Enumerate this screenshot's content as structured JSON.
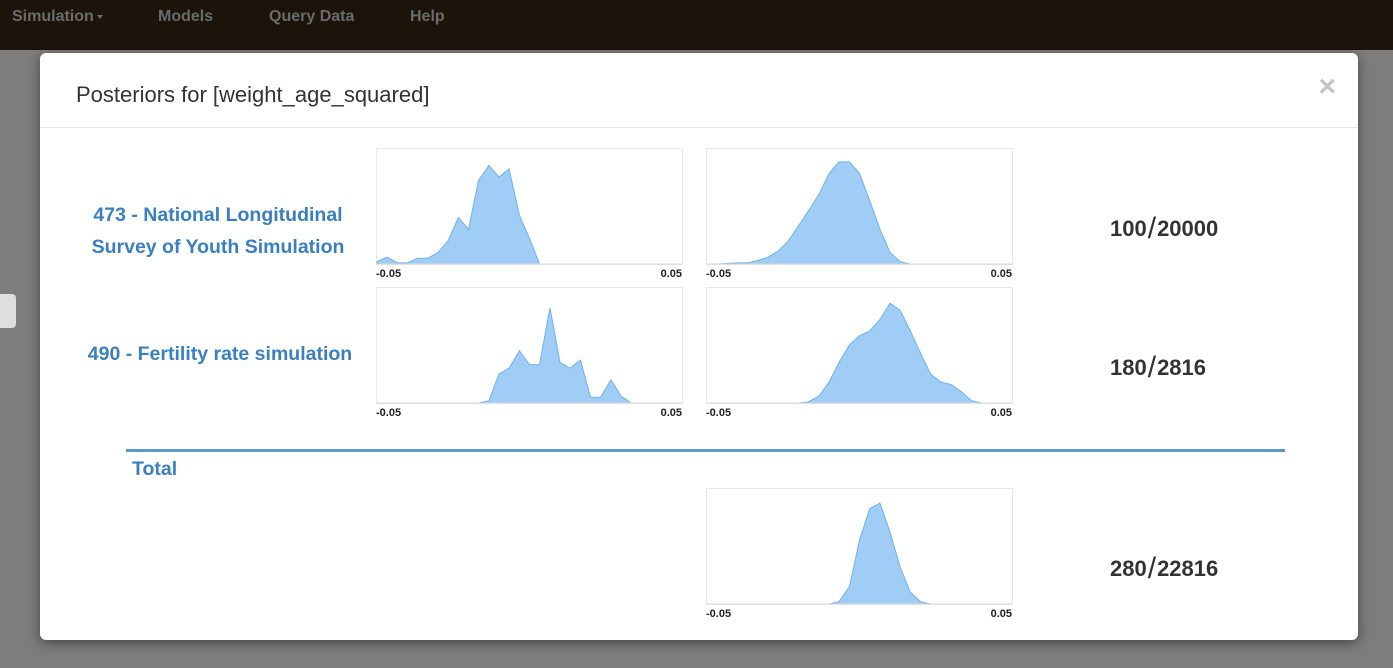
{
  "navbar": {
    "items": [
      {
        "label": "Simulation",
        "has_caret": true
      },
      {
        "label": "Models"
      },
      {
        "label": "Query Data"
      },
      {
        "label": "Help"
      }
    ]
  },
  "modal": {
    "title": "Posteriors for [weight_age_squared]",
    "close_label": "×",
    "rows": [
      {
        "model_lines": [
          "473 - National Longitudinal",
          "Survey of Youth Simulation"
        ],
        "accepted": "100",
        "total": "20000"
      },
      {
        "model_lines": [
          "490 - Fertility rate simulation"
        ],
        "accepted": "180",
        "total": "2816"
      }
    ],
    "total_section": {
      "label": "Total",
      "accepted": "280",
      "total": "22816"
    }
  },
  "chart_data": [
    {
      "type": "area",
      "xlim": [
        -0.05,
        0.05
      ],
      "tick_labels": [
        "-0.05",
        "0.05"
      ],
      "color": "#9fcdf5",
      "x": [
        -0.05,
        -0.0467,
        -0.0433,
        -0.04,
        -0.0367,
        -0.0333,
        -0.03,
        -0.0267,
        -0.0233,
        -0.02,
        -0.0167,
        -0.0133,
        -0.01,
        -0.0067,
        -0.0033,
        0,
        0.0033,
        0.0067,
        0.01,
        0.0133,
        0.0167,
        0.02,
        0.0233,
        0.0267,
        0.03,
        0.0333,
        0.0367,
        0.04,
        0.0433,
        0.0467,
        0.05
      ],
      "y": [
        0.02,
        0.06,
        0.01,
        0.01,
        0.05,
        0.05,
        0.1,
        0.2,
        0.4,
        0.3,
        0.72,
        0.85,
        0.75,
        0.82,
        0.42,
        0.22,
        0,
        0,
        0,
        0,
        0,
        0,
        0,
        0,
        0,
        0,
        0,
        0,
        0,
        0,
        0
      ]
    },
    {
      "type": "area",
      "xlim": [
        -0.05,
        0.05
      ],
      "tick_labels": [
        "-0.05",
        "0.05"
      ],
      "color": "#9fcdf5",
      "x": [
        -0.05,
        -0.0467,
        -0.0433,
        -0.04,
        -0.0367,
        -0.0333,
        -0.03,
        -0.0267,
        -0.0233,
        -0.02,
        -0.0167,
        -0.0133,
        -0.01,
        -0.0067,
        -0.0033,
        0,
        0.0033,
        0.0067,
        0.01,
        0.0133,
        0.0167,
        0.02,
        0.0233,
        0.0267,
        0.03,
        0.0333,
        0.0367,
        0.04,
        0.0433,
        0.0467,
        0.05
      ],
      "y": [
        0,
        0,
        0.005,
        0.01,
        0.01,
        0.03,
        0.06,
        0.11,
        0.2,
        0.33,
        0.46,
        0.6,
        0.78,
        0.88,
        0.88,
        0.78,
        0.55,
        0.3,
        0.1,
        0.02,
        0,
        0,
        0,
        0,
        0,
        0,
        0,
        0,
        0,
        0,
        0
      ]
    },
    {
      "type": "area",
      "xlim": [
        -0.05,
        0.05
      ],
      "tick_labels": [
        "-0.05",
        "0.05"
      ],
      "color": "#9fcdf5",
      "x": [
        -0.05,
        -0.0467,
        -0.0433,
        -0.04,
        -0.0367,
        -0.0333,
        -0.03,
        -0.0267,
        -0.0233,
        -0.02,
        -0.0167,
        -0.0133,
        -0.01,
        -0.0067,
        -0.0033,
        0,
        0.0033,
        0.0067,
        0.01,
        0.0133,
        0.0167,
        0.02,
        0.0233,
        0.0267,
        0.03,
        0.0333,
        0.0367,
        0.04,
        0.0433,
        0.0467,
        0.05
      ],
      "y": [
        0,
        0,
        0,
        0,
        0,
        0,
        0,
        0,
        0,
        0,
        0,
        0.02,
        0.25,
        0.3,
        0.45,
        0.33,
        0.33,
        0.82,
        0.35,
        0.3,
        0.37,
        0.05,
        0.05,
        0.2,
        0.06,
        0,
        0,
        0,
        0,
        0,
        0
      ]
    },
    {
      "type": "area",
      "xlim": [
        -0.05,
        0.05
      ],
      "tick_labels": [
        "-0.05",
        "0.05"
      ],
      "color": "#9fcdf5",
      "x": [
        -0.05,
        -0.0467,
        -0.0433,
        -0.04,
        -0.0367,
        -0.0333,
        -0.03,
        -0.0267,
        -0.0233,
        -0.02,
        -0.0167,
        -0.0133,
        -0.01,
        -0.0067,
        -0.0033,
        0,
        0.0033,
        0.0067,
        0.01,
        0.0133,
        0.0167,
        0.02,
        0.0233,
        0.0267,
        0.03,
        0.0333,
        0.0367,
        0.04,
        0.0433,
        0.0467,
        0.05
      ],
      "y": [
        0,
        0,
        0,
        0,
        0,
        0,
        0,
        0,
        0,
        0,
        0.01,
        0.06,
        0.18,
        0.35,
        0.5,
        0.58,
        0.62,
        0.72,
        0.86,
        0.8,
        0.62,
        0.43,
        0.25,
        0.18,
        0.16,
        0.1,
        0.02,
        0,
        0,
        0,
        0
      ]
    },
    {
      "type": "area",
      "xlim": [
        -0.05,
        0.05
      ],
      "tick_labels": [
        "-0.05",
        "0.05"
      ],
      "color": "#9fcdf5",
      "x": [
        -0.05,
        -0.0467,
        -0.0433,
        -0.04,
        -0.0367,
        -0.0333,
        -0.03,
        -0.0267,
        -0.0233,
        -0.02,
        -0.0167,
        -0.0133,
        -0.01,
        -0.0067,
        -0.0033,
        0,
        0.0033,
        0.0067,
        0.01,
        0.0133,
        0.0167,
        0.02,
        0.0233,
        0.0267,
        0.03,
        0.0333,
        0.0367,
        0.04,
        0.0433,
        0.0467,
        0.05
      ],
      "y": [
        0,
        0,
        0,
        0,
        0,
        0,
        0,
        0,
        0,
        0,
        0,
        0,
        0,
        0.02,
        0.15,
        0.55,
        0.82,
        0.87,
        0.62,
        0.32,
        0.1,
        0.02,
        0,
        0,
        0,
        0,
        0,
        0,
        0,
        0,
        0
      ]
    }
  ]
}
